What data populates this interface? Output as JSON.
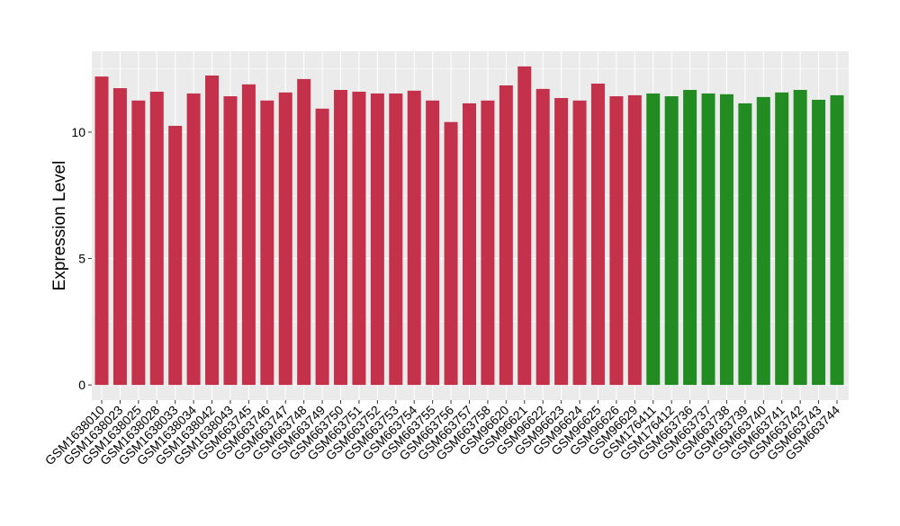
{
  "chart_data": {
    "type": "bar",
    "title": "",
    "xlabel": "",
    "ylabel": "Expression Level",
    "ylim": [
      -0.6,
      13.2
    ],
    "yticks": [
      0,
      5,
      10
    ],
    "grid": true,
    "legend": "none",
    "colors": {
      "group1": "#C3314A",
      "group2": "#228B22",
      "panel": "#EBEBEB",
      "grid": "#FFFFFF"
    },
    "categories": [
      "GSM1638010",
      "GSM1638023",
      "GSM1638025",
      "GSM1638028",
      "GSM1638033",
      "GSM1638034",
      "GSM1638042",
      "GSM1638043",
      "GSM663745",
      "GSM663746",
      "GSM663747",
      "GSM663748",
      "GSM663749",
      "GSM663750",
      "GSM663751",
      "GSM663752",
      "GSM663753",
      "GSM663754",
      "GSM663755",
      "GSM663756",
      "GSM663757",
      "GSM663758",
      "GSM96620",
      "GSM96621",
      "GSM96622",
      "GSM96623",
      "GSM96624",
      "GSM96625",
      "GSM96626",
      "GSM96629",
      "GSM176411",
      "GSM176412",
      "GSM663736",
      "GSM663737",
      "GSM663738",
      "GSM663739",
      "GSM663740",
      "GSM663741",
      "GSM663742",
      "GSM663743",
      "GSM663744"
    ],
    "values": [
      12.2,
      11.74,
      11.25,
      11.6,
      10.25,
      11.53,
      12.24,
      11.42,
      11.89,
      11.25,
      11.57,
      12.1,
      10.93,
      11.67,
      11.6,
      11.53,
      11.53,
      11.64,
      11.25,
      10.4,
      11.14,
      11.25,
      11.85,
      12.6,
      11.71,
      11.35,
      11.25,
      11.92,
      11.42,
      11.46,
      11.53,
      11.42,
      11.67,
      11.53,
      11.5,
      11.14,
      11.39,
      11.57,
      11.67,
      11.28,
      11.46
    ],
    "groups": [
      1,
      1,
      1,
      1,
      1,
      1,
      1,
      1,
      1,
      1,
      1,
      1,
      1,
      1,
      1,
      1,
      1,
      1,
      1,
      1,
      1,
      1,
      1,
      1,
      1,
      1,
      1,
      1,
      1,
      1,
      2,
      2,
      2,
      2,
      2,
      2,
      2,
      2,
      2,
      2,
      2
    ]
  }
}
